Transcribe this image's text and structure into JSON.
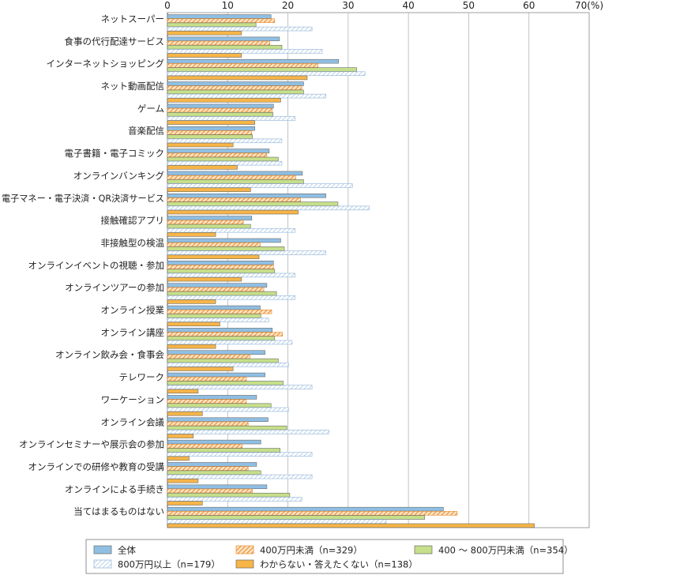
{
  "chart_data": {
    "type": "bar",
    "orientation": "horizontal",
    "unit_label": "(%)",
    "xlim": [
      0,
      70
    ],
    "x_ticks": [
      0,
      10,
      20,
      30,
      40,
      50,
      60,
      70
    ],
    "grid": true,
    "legend_position": "bottom",
    "categories": [
      "ネットスーパー",
      "食事の代行配達サービス",
      "インターネットショッピング",
      "ネット動画配信",
      "ゲーム",
      "音楽配信",
      "電子書籍・電子コミック",
      "オンラインバンキング",
      "電子マネー・電子決済・QR決済サービス",
      "接触確認アプリ",
      "非接触型の検温",
      "オンラインイベントの視聴・参加",
      "オンラインツアーの参加",
      "オンライン授業",
      "オンライン講座",
      "オンライン飲み会・食事会",
      "テレワーク",
      "ワーケーション",
      "オンライン会議",
      "オンラインセミナーや展示会の参加",
      "オンラインでの研修や教育の受講",
      "オンラインによる手続き",
      "当てはまるものはない"
    ],
    "series": [
      {
        "name": "全体",
        "color": "#8fbfe3",
        "pattern": "solid",
        "values": [
          17.2,
          18.6,
          28.4,
          22.6,
          17.6,
          14.5,
          16.9,
          22.4,
          26.3,
          14.0,
          18.8,
          17.6,
          16.5,
          15.4,
          17.4,
          16.2,
          16.2,
          14.8,
          16.7,
          15.5,
          14.8,
          16.5,
          45.8
        ]
      },
      {
        "name": "400万円未満（n=329）",
        "color": "#f0a44a",
        "pattern": "hatch-orange",
        "values": [
          17.8,
          17.0,
          25.0,
          22.3,
          17.4,
          14.0,
          16.5,
          21.3,
          22.1,
          12.6,
          15.4,
          17.6,
          16.0,
          17.3,
          19.1,
          13.7,
          13.1,
          13.1,
          13.4,
          12.4,
          13.4,
          14.1,
          48.1
        ]
      },
      {
        "name": "400 ～ 800万円未満（n=354）",
        "color": "#c6df8a",
        "pattern": "solid",
        "values": [
          14.7,
          19.0,
          31.4,
          22.6,
          17.5,
          14.1,
          18.4,
          22.6,
          28.3,
          13.8,
          19.4,
          17.8,
          18.1,
          15.5,
          17.8,
          18.4,
          19.2,
          17.2,
          19.8,
          18.7,
          15.5,
          20.3,
          42.7
        ]
      },
      {
        "name": "800万円以上（n=179）",
        "color": "#d6e8f6",
        "pattern": "hatch-blue",
        "values": [
          24.0,
          25.7,
          32.8,
          26.3,
          21.2,
          19.0,
          19.0,
          30.7,
          33.5,
          21.2,
          26.3,
          21.2,
          21.2,
          16.8,
          20.7,
          20.1,
          24.0,
          20.1,
          26.8,
          24.0,
          24.0,
          22.3,
          36.3
        ]
      },
      {
        "name": "わからない・答えたくない（n=138）",
        "color": "#f7b548",
        "pattern": "solid",
        "values": [
          12.3,
          12.3,
          23.2,
          18.8,
          14.5,
          10.9,
          11.6,
          13.8,
          21.7,
          8.0,
          15.2,
          12.3,
          8.0,
          8.7,
          8.0,
          10.9,
          5.1,
          5.8,
          4.3,
          3.6,
          5.1,
          5.8,
          60.9
        ]
      }
    ]
  }
}
